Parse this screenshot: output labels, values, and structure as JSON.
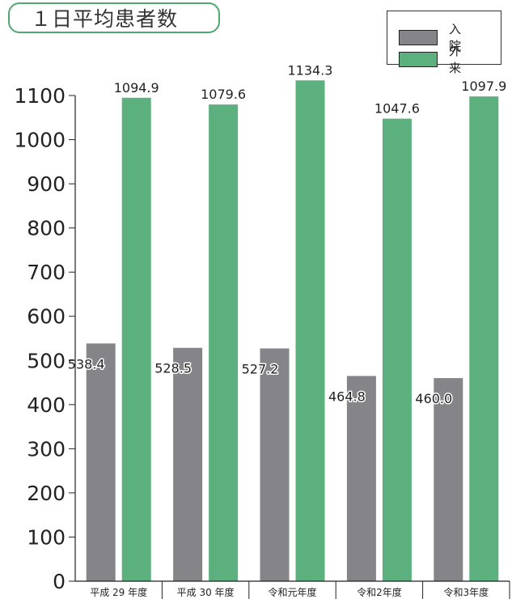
{
  "chart_data": {
    "type": "bar",
    "title": "１日平均患者数",
    "categories": [
      "平成 29 年度",
      "平成 30 年度",
      "令和元年度",
      "令和2年度",
      "令和3年度"
    ],
    "series": [
      {
        "name": "入　院",
        "values": [
          538.4,
          528.5,
          527.2,
          464.8,
          460.0
        ],
        "labels": [
          "538.4",
          "528.5",
          "527.2",
          "464.8",
          "460.0"
        ],
        "color": "#848489"
      },
      {
        "name": "外　来",
        "values": [
          1094.9,
          1079.6,
          1134.3,
          1047.6,
          1097.9
        ],
        "labels": [
          "1094.9",
          "1079.6",
          "1134.3",
          "1047.6",
          "1097.9"
        ],
        "color": "#5bb07d"
      }
    ],
    "ylim": [
      0,
      1100
    ],
    "yticks": [
      "0",
      "100",
      "200",
      "300",
      "400",
      "500",
      "600",
      "700",
      "800",
      "900",
      "1000",
      "1100"
    ],
    "xlabel": "",
    "ylabel": "",
    "legend_position": "top-right",
    "grid": false
  }
}
